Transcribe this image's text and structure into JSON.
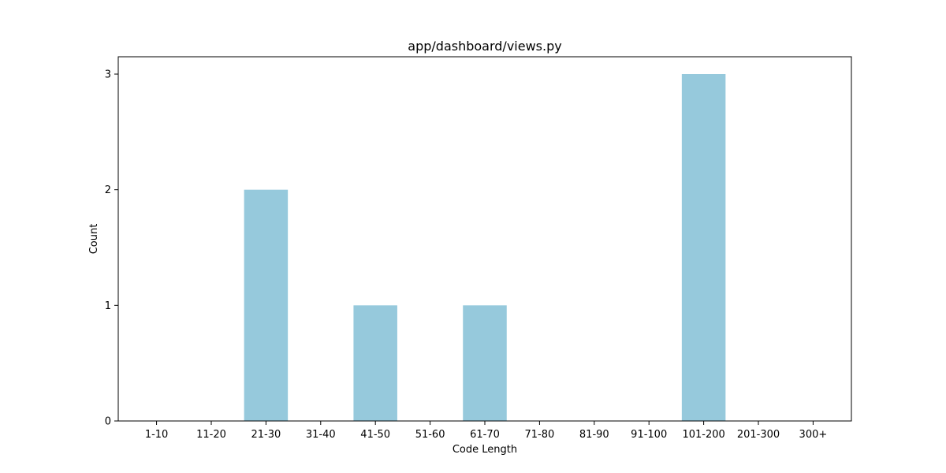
{
  "chart_data": {
    "type": "bar",
    "title": "app/dashboard/views.py",
    "xlabel": "Code Length",
    "ylabel": "Count",
    "categories": [
      "1-10",
      "11-20",
      "21-30",
      "31-40",
      "41-50",
      "51-60",
      "61-70",
      "71-80",
      "81-90",
      "91-100",
      "101-200",
      "201-300",
      "300+"
    ],
    "values": [
      0,
      0,
      2,
      0,
      1,
      0,
      1,
      0,
      0,
      0,
      3,
      0,
      0
    ],
    "ylim": [
      0,
      3.15
    ],
    "yticks": [
      0,
      1,
      2,
      3
    ],
    "grid": false,
    "bar_color": "#96c9dc"
  }
}
